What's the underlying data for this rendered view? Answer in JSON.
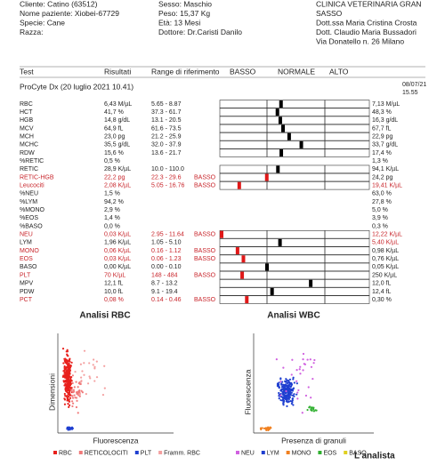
{
  "header": {
    "left": [
      "Cliente: Catino (63512)",
      "Nome paziente: Xiobei-67729",
      "Specie: Cane",
      "Razza:"
    ],
    "middle": [
      "Sesso: Maschio",
      "Peso: 15,37 Kg",
      "Età: 13 Mesi",
      "Dottore: Dr.Caristi Danilo"
    ],
    "right": [
      "CLINICA VETERINARIA GRAN",
      "SASSO",
      "Dott.ssa Maria Cristina Crosta",
      "Dott. Claudio Maria Bussadori",
      "Via Donatello n. 26 Milano"
    ]
  },
  "table": {
    "columns": [
      "Test",
      "Risultati",
      "Range di riferimento",
      "BASSO",
      "NORMALE",
      "ALTO"
    ],
    "instrument": "ProCyte Dx (20 luglio 2021 10.41)",
    "prev_date": "08/07/21",
    "prev_time": "15.55",
    "rows": [
      {
        "test": "RBC",
        "result": "6,43 M/µL",
        "range": "5.65 - 8.87",
        "previous": "7,13 M/µL"
      },
      {
        "test": "HCT",
        "result": "41,7 %",
        "range": "37.3 - 61.7",
        "previous": "48,3 %"
      },
      {
        "test": "HGB",
        "result": "14,8 g/dL",
        "range": "13.1 - 20.5",
        "previous": "16,3 g/dL"
      },
      {
        "test": "MCV",
        "result": "64,9 fL",
        "range": "61.6 - 73.5",
        "previous": "67,7 fL"
      },
      {
        "test": "MCH",
        "result": "23,0 pg",
        "range": "21.2 - 25.9",
        "previous": "22,9 pg"
      },
      {
        "test": "MCHC",
        "result": "35,5 g/dL",
        "range": "32.0 - 37.9",
        "previous": "33,7 g/dL"
      },
      {
        "test": "RDW",
        "result": "15,6 %",
        "range": "13.6 - 21.7",
        "previous": "17,4 %"
      },
      {
        "test": "%RETIC",
        "result": "0,5 %",
        "previous": "1,3 %"
      },
      {
        "test": "RETIC",
        "result": "28,9 K/µL",
        "range": "10.0 - 110.0",
        "previous": "94,1 K/µL"
      },
      {
        "test": "RETIC-HGB",
        "result": "22,2 pg",
        "range": "22.3 - 29.6",
        "flag": "BASSO",
        "previous": "24,2 pg"
      },
      {
        "test": "Leucociti",
        "result": "2,08 K/µL",
        "range": "5.05 - 16.76",
        "flag": "BASSO",
        "previous": "19,41 K/µL",
        "previous_alert": true
      },
      {
        "test": "%NEU",
        "result": "1,5 %",
        "previous": "63,0 %"
      },
      {
        "test": "%LYM",
        "result": "94,2 %",
        "previous": "27,8 %"
      },
      {
        "test": "%MONO",
        "result": "2,9 %",
        "previous": "5,0 %"
      },
      {
        "test": "%EOS",
        "result": "1,4 %",
        "previous": "3,9 %"
      },
      {
        "test": "%BASO",
        "result": "0,0 %",
        "previous": "0,3 %"
      },
      {
        "test": "NEU",
        "result": "0,03 K/µL",
        "range": "2.95 - 11.64",
        "flag": "BASSO",
        "previous": "12,22 K/µL",
        "previous_alert": true
      },
      {
        "test": "LYM",
        "result": "1,96 K/µL",
        "range": "1.05 - 5.10",
        "previous": "5,40 K/µL",
        "previous_alert": true
      },
      {
        "test": "MONO",
        "result": "0,06 K/µL",
        "range": "0.16 - 1.12",
        "flag": "BASSO",
        "previous": "0,98 K/µL"
      },
      {
        "test": "EOS",
        "result": "0,03 K/µL",
        "range": "0.06 - 1.23",
        "flag": "BASSO",
        "previous": "0,76 K/µL"
      },
      {
        "test": "BASO",
        "result": "0,00 K/µL",
        "range": "0.00 - 0.10",
        "previous": "0,05 K/µL"
      },
      {
        "test": "PLT",
        "result": "70 K/µL",
        "range": "148 - 484",
        "flag": "BASSO",
        "previous": "250 K/µL"
      },
      {
        "test": "MPV",
        "result": "12,1 fL",
        "range": "8.7 - 13.2",
        "previous": "12,0 fL"
      },
      {
        "test": "PDW",
        "result": "10,0 fL",
        "range": "9.1 - 19.4",
        "previous": "12,4 fL"
      },
      {
        "test": "PCT",
        "result": "0,08 %",
        "range": "0.14 - 0.46",
        "flag": "BASSO",
        "previous": "0,30 %"
      }
    ]
  },
  "charts": [
    {
      "title": "Analisi RBC",
      "y_label": "Dimensioni",
      "x_label": "Fluorescenza",
      "legend": [
        {
          "name": "RBC",
          "color": "#e8201c"
        },
        {
          "name": "RETICOLOCITI",
          "color": "#f07a7a"
        },
        {
          "name": "PLT",
          "color": "#1f3fd0"
        },
        {
          "name": "Framm. RBC",
          "color": "#f4a0a0"
        }
      ]
    },
    {
      "title": "Analisi WBC",
      "y_label": "Fluorescenza",
      "x_label": "Presenza di granuli",
      "legend": [
        {
          "name": "NEU",
          "color": "#d060e0"
        },
        {
          "name": "LYM",
          "color": "#1f3fd0"
        },
        {
          "name": "MONO",
          "color": "#f08020"
        },
        {
          "name": "EOS",
          "color": "#30b030"
        },
        {
          "name": "BASO",
          "color": "#e0d020"
        }
      ]
    }
  ],
  "signature": "L'analista"
}
